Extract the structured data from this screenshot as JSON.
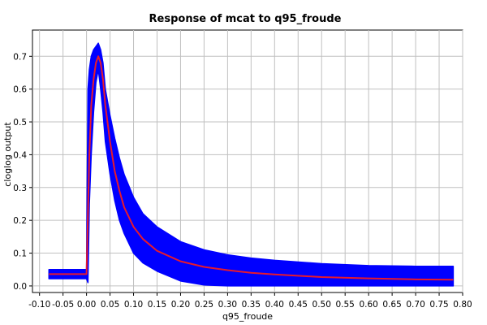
{
  "chart_data": {
    "type": "area",
    "title": "Response of mcat to q95_froude",
    "xlabel": "q95_froude",
    "ylabel": "cloglog output",
    "xlim": [
      -0.115,
      0.8
    ],
    "ylim": [
      -0.02,
      0.78
    ],
    "x_ticks": [
      "-0.10",
      "-0.05",
      "0.00",
      "0.05",
      "0.10",
      "0.15",
      "0.20",
      "0.25",
      "0.30",
      "0.35",
      "0.40",
      "0.45",
      "0.50",
      "0.55",
      "0.60",
      "0.65",
      "0.70",
      "0.75",
      "0.80"
    ],
    "y_ticks": [
      "0.0",
      "0.1",
      "0.2",
      "0.3",
      "0.4",
      "0.5",
      "0.6",
      "0.7"
    ],
    "grid": true,
    "colors": {
      "band": "#0000ff",
      "mean": "#e8192c",
      "grid": "#c0c0c0",
      "axis": "#000000"
    },
    "series": [
      {
        "role": "mean",
        "x": [
          -0.08,
          -0.01,
          0.0,
          0.003,
          0.006,
          0.01,
          0.015,
          0.02,
          0.025,
          0.03,
          0.035,
          0.04,
          0.05,
          0.06,
          0.07,
          0.08,
          0.1,
          0.12,
          0.15,
          0.2,
          0.25,
          0.3,
          0.35,
          0.4,
          0.5,
          0.6,
          0.7,
          0.78
        ],
        "y": [
          0.036,
          0.036,
          0.036,
          0.22,
          0.4,
          0.55,
          0.63,
          0.68,
          0.7,
          0.68,
          0.63,
          0.55,
          0.44,
          0.35,
          0.29,
          0.24,
          0.18,
          0.143,
          0.107,
          0.075,
          0.058,
          0.048,
          0.04,
          0.035,
          0.027,
          0.023,
          0.02,
          0.019
        ]
      },
      {
        "role": "upper",
        "x": [
          -0.08,
          -0.01,
          0.0,
          0.003,
          0.006,
          0.01,
          0.015,
          0.02,
          0.025,
          0.03,
          0.035,
          0.04,
          0.05,
          0.06,
          0.07,
          0.08,
          0.1,
          0.12,
          0.15,
          0.2,
          0.25,
          0.3,
          0.35,
          0.4,
          0.5,
          0.6,
          0.7,
          0.78
        ],
        "y": [
          0.05,
          0.05,
          0.05,
          0.6,
          0.66,
          0.7,
          0.72,
          0.73,
          0.74,
          0.72,
          0.68,
          0.6,
          0.52,
          0.45,
          0.39,
          0.34,
          0.27,
          0.22,
          0.18,
          0.135,
          0.11,
          0.095,
          0.085,
          0.078,
          0.068,
          0.062,
          0.06,
          0.06
        ]
      },
      {
        "role": "lower",
        "x": [
          -0.08,
          -0.01,
          0.0,
          0.003,
          0.006,
          0.01,
          0.015,
          0.02,
          0.025,
          0.03,
          0.035,
          0.04,
          0.05,
          0.06,
          0.07,
          0.08,
          0.1,
          0.12,
          0.15,
          0.2,
          0.25,
          0.3,
          0.35,
          0.4,
          0.5,
          0.6,
          0.7,
          0.78
        ],
        "y": [
          0.022,
          0.022,
          0.022,
          0.01,
          0.25,
          0.4,
          0.53,
          0.62,
          0.66,
          0.6,
          0.53,
          0.44,
          0.34,
          0.26,
          0.2,
          0.16,
          0.1,
          0.07,
          0.045,
          0.015,
          0.003,
          0.0,
          0.0,
          0.0,
          0.0,
          0.0,
          0.0,
          0.0
        ]
      }
    ]
  }
}
